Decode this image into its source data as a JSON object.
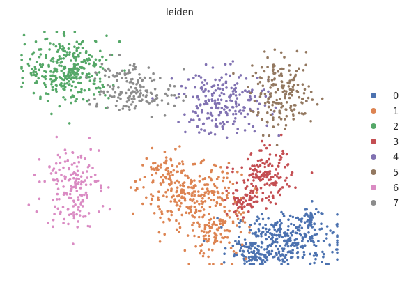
{
  "chart_data": {
    "type": "scatter",
    "title": "leiden",
    "xlabel": "",
    "ylabel": "",
    "grid": false,
    "axes_visible": false,
    "legend_position": "right",
    "series": [
      {
        "name": "0",
        "color": "#4c72b0",
        "blobs": [
          {
            "cx": 0.6,
            "cy": 0.3,
            "rx": 0.55,
            "ry": 0.28,
            "n": 320
          },
          {
            "cx": 0.2,
            "cy": 0.12,
            "rx": 0.25,
            "ry": 0.14,
            "n": 80
          },
          {
            "cx": 0.85,
            "cy": 0.55,
            "rx": 0.1,
            "ry": 0.12,
            "n": 30
          }
        ]
      },
      {
        "name": "1",
        "color": "#dd8452",
        "blobs": [
          {
            "cx": -0.55,
            "cy": 0.85,
            "rx": 0.55,
            "ry": 0.35,
            "n": 260
          },
          {
            "cx": -0.25,
            "cy": 0.4,
            "rx": 0.35,
            "ry": 0.3,
            "n": 120
          },
          {
            "cx": -0.85,
            "cy": 1.1,
            "rx": 0.25,
            "ry": 0.2,
            "n": 40
          }
        ]
      },
      {
        "name": "2",
        "color": "#55a868",
        "blobs": [
          {
            "cx": -2.0,
            "cy": 2.35,
            "rx": 0.45,
            "ry": 0.35,
            "n": 320
          }
        ]
      },
      {
        "name": "3",
        "color": "#c44e52",
        "blobs": [
          {
            "cx": 0.35,
            "cy": 1.05,
            "rx": 0.28,
            "ry": 0.28,
            "n": 150
          },
          {
            "cx": 0.1,
            "cy": 0.75,
            "rx": 0.18,
            "ry": 0.15,
            "n": 60
          }
        ]
      },
      {
        "name": "4",
        "color": "#8172b2",
        "blobs": [
          {
            "cx": -0.15,
            "cy": 1.95,
            "rx": 0.5,
            "ry": 0.35,
            "n": 220
          }
        ]
      },
      {
        "name": "5",
        "color": "#937860",
        "blobs": [
          {
            "cx": 0.55,
            "cy": 2.05,
            "rx": 0.35,
            "ry": 0.38,
            "n": 180
          }
        ]
      },
      {
        "name": "6",
        "color": "#da8bc3",
        "blobs": [
          {
            "cx": -1.95,
            "cy": 0.95,
            "rx": 0.3,
            "ry": 0.45,
            "n": 170
          }
        ]
      },
      {
        "name": "7",
        "color": "#8c8c8c",
        "blobs": [
          {
            "cx": -1.35,
            "cy": 2.15,
            "rx": 0.4,
            "ry": 0.3,
            "n": 130
          },
          {
            "cx": -0.95,
            "cy": 2.0,
            "rx": 0.3,
            "ry": 0.15,
            "n": 40
          }
        ]
      }
    ],
    "xlim": [
      -2.6,
      1.25
    ],
    "ylim": [
      -0.05,
      2.85
    ]
  }
}
